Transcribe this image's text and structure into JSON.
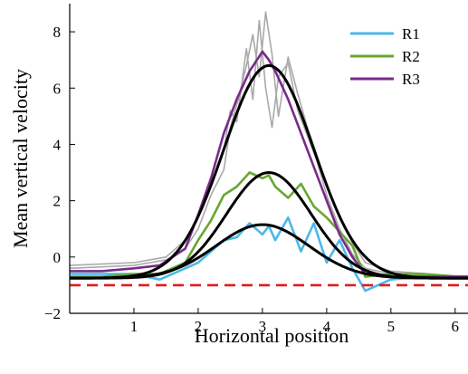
{
  "chart_data": {
    "type": "line",
    "title": "",
    "xlabel": "Horizontal position",
    "ylabel": "Mean vertical velocity",
    "xlim": [
      0,
      6.2
    ],
    "ylim": [
      -2,
      9
    ],
    "xticks": [
      "1",
      "2",
      "3",
      "4",
      "5",
      "6"
    ],
    "yticks": [
      "−2",
      "0",
      "2",
      "4",
      "6",
      "8"
    ],
    "grid": false,
    "legend_position": "top-right",
    "reference_line": {
      "y": -1.0,
      "color": "#e41a1c",
      "style": "dashed"
    },
    "series": [
      {
        "name": "R1",
        "color": "#4db8e8",
        "x": [
          0.0,
          0.5,
          1.0,
          1.4,
          1.8,
          2.0,
          2.2,
          2.4,
          2.6,
          2.8,
          3.0,
          3.1,
          3.2,
          3.4,
          3.6,
          3.8,
          4.0,
          4.2,
          4.4,
          4.6,
          5.0,
          5.5,
          6.0,
          6.2
        ],
        "y": [
          -0.6,
          -0.6,
          -0.6,
          -0.8,
          -0.4,
          -0.2,
          0.2,
          0.6,
          0.7,
          1.2,
          0.8,
          1.1,
          0.6,
          1.4,
          0.2,
          1.2,
          -0.2,
          0.6,
          -0.4,
          -1.2,
          -0.8,
          -0.7,
          -0.7,
          -0.7
        ]
      },
      {
        "name": "R2",
        "color": "#66a832",
        "x": [
          0.0,
          0.5,
          1.0,
          1.4,
          1.8,
          2.0,
          2.2,
          2.4,
          2.6,
          2.8,
          3.0,
          3.1,
          3.2,
          3.4,
          3.6,
          3.8,
          4.0,
          4.2,
          4.4,
          4.6,
          5.0,
          5.5,
          6.0,
          6.2
        ],
        "y": [
          -0.7,
          -0.7,
          -0.6,
          -0.6,
          -0.2,
          0.6,
          1.3,
          2.2,
          2.5,
          3.0,
          2.8,
          2.9,
          2.5,
          2.1,
          2.6,
          1.8,
          1.4,
          0.9,
          0.4,
          -0.7,
          -0.6,
          -0.6,
          -0.7,
          -0.7
        ]
      },
      {
        "name": "R3",
        "color": "#7a2a8c",
        "x": [
          0.0,
          0.5,
          1.0,
          1.4,
          1.8,
          2.0,
          2.2,
          2.4,
          2.6,
          2.8,
          3.0,
          3.1,
          3.2,
          3.4,
          3.6,
          3.8,
          4.0,
          4.2,
          4.4,
          4.6,
          5.0,
          5.5,
          6.0,
          6.2
        ],
        "y": [
          -0.5,
          -0.5,
          -0.4,
          -0.3,
          0.3,
          1.5,
          2.8,
          4.4,
          5.6,
          6.6,
          7.3,
          7.0,
          6.6,
          5.6,
          4.4,
          3.2,
          2.0,
          0.8,
          0.0,
          -0.6,
          -0.7,
          -0.7,
          -0.7,
          -0.7
        ]
      }
    ],
    "fits": [
      {
        "color": "#000000",
        "amplitude": 1.9,
        "center": 3.0,
        "width": 0.72,
        "baseline": -0.75
      },
      {
        "color": "#000000",
        "amplitude": 3.75,
        "center": 3.1,
        "width": 0.66,
        "baseline": -0.75
      },
      {
        "color": "#000000",
        "amplitude": 7.55,
        "center": 3.1,
        "width": 0.7,
        "baseline": -0.75
      }
    ],
    "gray_traces": [
      {
        "color": "#a9a9a9",
        "x": [
          0.0,
          1.0,
          1.5,
          1.8,
          2.0,
          2.2,
          2.4,
          2.5,
          2.6,
          2.75,
          2.85,
          2.95,
          3.05,
          3.15,
          3.25,
          3.4,
          3.55,
          3.7,
          3.85,
          4.0,
          4.2,
          4.4,
          4.6,
          5.0,
          6.2
        ],
        "y": [
          -0.3,
          -0.2,
          0.0,
          0.6,
          1.4,
          2.6,
          3.8,
          5.2,
          4.8,
          7.4,
          5.6,
          8.4,
          6.0,
          4.6,
          6.4,
          6.9,
          5.2,
          4.3,
          3.4,
          2.2,
          1.0,
          0.1,
          -0.4,
          -0.6,
          -0.7
        ]
      },
      {
        "color": "#a9a9a9",
        "x": [
          0.0,
          1.0,
          1.5,
          1.8,
          2.0,
          2.2,
          2.4,
          2.5,
          2.6,
          2.75,
          2.85,
          2.95,
          3.05,
          3.15,
          3.25,
          3.4,
          3.55,
          3.7,
          3.85,
          4.0,
          4.2,
          4.4,
          4.6,
          5.0,
          6.2
        ],
        "y": [
          -0.4,
          -0.3,
          -0.1,
          0.3,
          1.0,
          2.2,
          3.1,
          4.6,
          5.4,
          6.8,
          7.9,
          6.4,
          8.7,
          7.2,
          5.0,
          7.1,
          5.8,
          4.6,
          3.6,
          2.6,
          1.4,
          0.5,
          -0.2,
          -0.5,
          -0.7
        ]
      }
    ]
  },
  "legend": {
    "items": [
      {
        "label": "R1",
        "color": "#4db8e8"
      },
      {
        "label": "R2",
        "color": "#66a832"
      },
      {
        "label": "R3",
        "color": "#7a2a8c"
      }
    ]
  }
}
